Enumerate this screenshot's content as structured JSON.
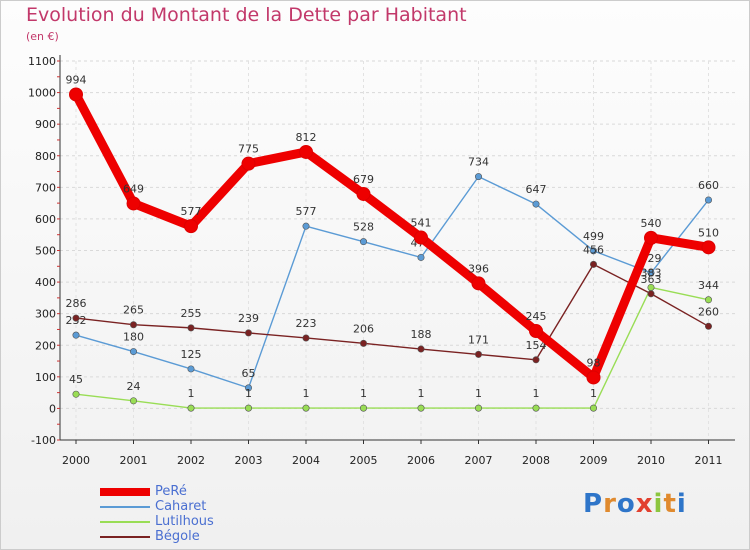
{
  "header": {
    "title": "Evolution du Montant de la Dette par Habitant",
    "subtitle": "(en €)"
  },
  "logo": {
    "letters": [
      "P",
      "r",
      "o",
      "x",
      "i",
      "t",
      "i"
    ],
    "colors": [
      "#2e75c9",
      "#e08a2e",
      "#2e75c9",
      "#e2402f",
      "#8cc63f",
      "#e08a2e",
      "#2e75c9"
    ]
  },
  "chart_data": {
    "type": "line",
    "title": "Evolution du Montant de la Dette par Habitant",
    "subtitle": "(en €)",
    "categories": [
      "2000",
      "2001",
      "2002",
      "2003",
      "2004",
      "2005",
      "2006",
      "2007",
      "2008",
      "2009",
      "2010",
      "2011"
    ],
    "ylim": [
      -100,
      1100
    ],
    "yticks": [
      -100,
      0,
      100,
      200,
      300,
      400,
      500,
      600,
      700,
      800,
      900,
      1000,
      1100
    ],
    "grid": true,
    "legend_position": "bottom-left",
    "series": [
      {
        "name": "PeRé",
        "color": "#ee0000",
        "emphasis": true,
        "values": [
          994,
          649,
          577,
          775,
          812,
          679,
          541,
          396,
          245,
          98,
          540,
          510
        ]
      },
      {
        "name": "Caharet",
        "color": "#5b9bd5",
        "values": [
          232,
          180,
          125,
          65,
          577,
          528,
          478,
          734,
          647,
          499,
          429,
          660
        ]
      },
      {
        "name": "Lutilhous",
        "color": "#99dd55",
        "values": [
          45,
          24,
          1,
          1,
          1,
          1,
          1,
          1,
          1,
          1,
          383,
          344
        ]
      },
      {
        "name": "Bégole",
        "color": "#7a2222",
        "values": [
          286,
          265,
          255,
          239,
          223,
          206,
          188,
          171,
          154,
          456,
          363,
          260
        ]
      }
    ]
  }
}
